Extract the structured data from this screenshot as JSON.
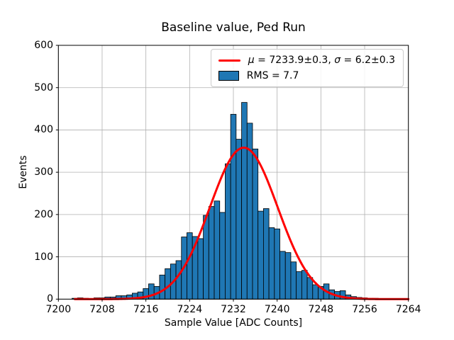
{
  "chart_data": {
    "type": "bar",
    "subtype": "histogram-with-gaussian-fit",
    "title": "Baseline value, Ped Run",
    "xlabel": "Sample Value [ADC Counts]",
    "ylabel": "Events",
    "xlim": [
      7200,
      7264
    ],
    "ylim": [
      0,
      600
    ],
    "x_ticks": [
      7200,
      7208,
      7216,
      7224,
      7232,
      7240,
      7248,
      7256,
      7264
    ],
    "y_ticks": [
      0,
      100,
      200,
      300,
      400,
      500,
      600
    ],
    "grid": true,
    "colors": {
      "bar_fill": "#1f77b4",
      "bar_edge": "#000000",
      "fit_line": "#ff0000",
      "grid": "#b0b0b0",
      "spine": "#000000"
    },
    "histogram": {
      "bin_width": 1,
      "bin_centers": [
        7203,
        7204,
        7205,
        7206,
        7207,
        7208,
        7209,
        7210,
        7211,
        7212,
        7213,
        7214,
        7215,
        7216,
        7217,
        7218,
        7219,
        7220,
        7221,
        7222,
        7223,
        7224,
        7225,
        7226,
        7227,
        7228,
        7229,
        7230,
        7231,
        7232,
        7233,
        7234,
        7235,
        7236,
        7237,
        7238,
        7239,
        7240,
        7241,
        7242,
        7243,
        7244,
        7245,
        7246,
        7247,
        7248,
        7249,
        7250,
        7251,
        7252,
        7253,
        7254,
        7255,
        7256,
        7257,
        7258,
        7259,
        7260,
        7261,
        7262
      ],
      "counts": [
        2,
        3,
        2,
        1,
        3,
        3,
        5,
        5,
        8,
        8,
        10,
        14,
        17,
        25,
        36,
        30,
        57,
        72,
        83,
        91,
        147,
        157,
        148,
        143,
        198,
        219,
        232,
        205,
        320,
        437,
        378,
        465,
        416,
        355,
        208,
        214,
        169,
        166,
        113,
        110,
        88,
        65,
        68,
        51,
        34,
        30,
        36,
        22,
        18,
        20,
        10,
        6,
        4,
        3,
        2,
        2,
        1,
        1,
        1,
        1
      ]
    },
    "fit_curve": {
      "model": "gaussian",
      "mu": 7233.9,
      "mu_err": 0.3,
      "sigma": 6.2,
      "sigma_err": 0.3,
      "peak_events": 358,
      "x_start": 7203,
      "x_end": 7264
    },
    "rms": 7.7,
    "legend": {
      "position": "upper right",
      "entries": [
        {
          "swatch": "line",
          "segments": [
            {
              "text": "μ",
              "italic": true
            },
            {
              "text": " = 7233.9±0.3, ",
              "italic": false
            },
            {
              "text": "σ",
              "italic": true
            },
            {
              "text": " = 6.2±0.3",
              "italic": false
            }
          ]
        },
        {
          "swatch": "patch",
          "segments": [
            {
              "text": "RMS = 7.7",
              "italic": false
            }
          ]
        }
      ]
    }
  }
}
